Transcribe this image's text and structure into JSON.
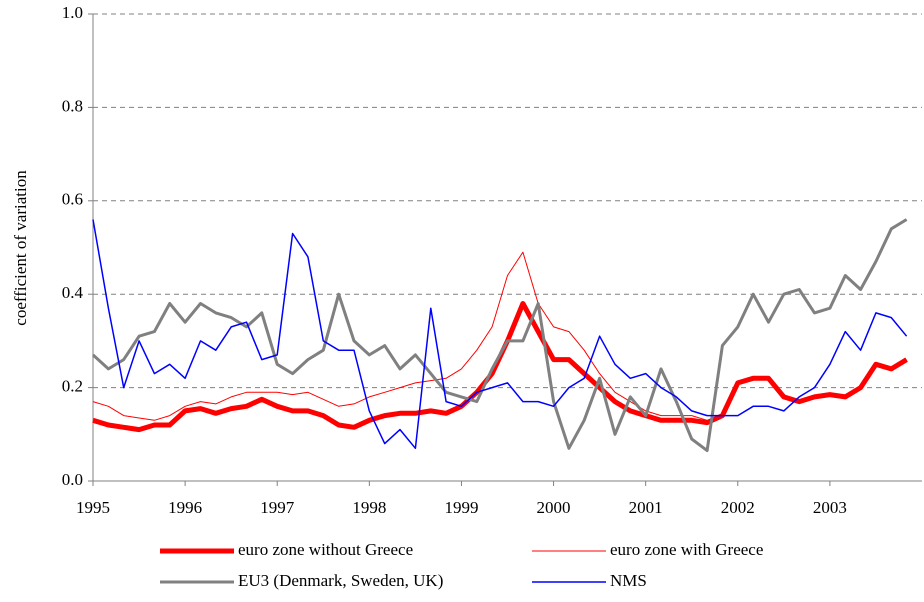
{
  "chart_data": {
    "type": "line",
    "y_label": "coefficient of variation",
    "x": [
      1995,
      1995.167,
      1995.333,
      1995.5,
      1995.667,
      1995.833,
      1996,
      1996.167,
      1996.333,
      1996.5,
      1996.667,
      1996.833,
      1997,
      1997.167,
      1997.333,
      1997.5,
      1997.667,
      1997.833,
      1998,
      1998.167,
      1998.333,
      1998.5,
      1998.667,
      1998.833,
      1999,
      1999.167,
      1999.333,
      1999.5,
      1999.667,
      1999.833,
      2000,
      2000.167,
      2000.333,
      2000.5,
      2000.667,
      2000.833,
      2001,
      2001.167,
      2001.333,
      2001.5,
      2001.667,
      2001.833,
      2002,
      2002.167,
      2002.333,
      2002.5,
      2002.667,
      2002.833,
      2003,
      2003.167,
      2003.333,
      2003.5,
      2003.667,
      2003.833
    ],
    "series": [
      {
        "name": "euro zone without Greece",
        "color": "#ff0000",
        "values": [
          0.13,
          0.12,
          0.115,
          0.11,
          0.12,
          0.12,
          0.15,
          0.155,
          0.145,
          0.155,
          0.16,
          0.175,
          0.16,
          0.15,
          0.15,
          0.14,
          0.12,
          0.115,
          0.13,
          0.14,
          0.145,
          0.145,
          0.15,
          0.145,
          0.16,
          0.19,
          0.23,
          0.3,
          0.38,
          0.32,
          0.26,
          0.26,
          0.23,
          0.2,
          0.17,
          0.15,
          0.14,
          0.13,
          0.13,
          0.13,
          0.125,
          0.14,
          0.21,
          0.22,
          0.22,
          0.18,
          0.17,
          0.18,
          0.185,
          0.18,
          0.2,
          0.25,
          0.24,
          0.26
        ]
      },
      {
        "name": "euro zone with Greece",
        "color": "#ff0000",
        "values": [
          0.17,
          0.16,
          0.14,
          0.135,
          0.13,
          0.14,
          0.16,
          0.17,
          0.165,
          0.18,
          0.19,
          0.19,
          0.19,
          0.185,
          0.19,
          0.175,
          0.16,
          0.165,
          0.18,
          0.19,
          0.2,
          0.21,
          0.215,
          0.22,
          0.24,
          0.28,
          0.33,
          0.44,
          0.49,
          0.38,
          0.33,
          0.32,
          0.28,
          0.23,
          0.19,
          0.17,
          0.15,
          0.14,
          0.14,
          0.14,
          0.13,
          0.14,
          0.21,
          0.22,
          0.22,
          0.18,
          0.17,
          0.18,
          0.185,
          0.18,
          0.2,
          0.25,
          0.24,
          0.26
        ]
      },
      {
        "name": "EU3 (Denmark, Sweden, UK)",
        "color": "#808080",
        "values": [
          0.27,
          0.24,
          0.26,
          0.31,
          0.32,
          0.38,
          0.34,
          0.38,
          0.36,
          0.35,
          0.33,
          0.36,
          0.25,
          0.23,
          0.26,
          0.28,
          0.4,
          0.3,
          0.27,
          0.29,
          0.24,
          0.27,
          0.23,
          0.19,
          0.18,
          0.17,
          0.24,
          0.3,
          0.3,
          0.38,
          0.17,
          0.07,
          0.13,
          0.22,
          0.1,
          0.18,
          0.14,
          0.24,
          0.17,
          0.09,
          0.065,
          0.29,
          0.33,
          0.4,
          0.34,
          0.4,
          0.41,
          0.36,
          0.37,
          0.44,
          0.41,
          0.47,
          0.54,
          0.56
        ]
      },
      {
        "name": "NMS",
        "color": "#0000ff",
        "values": [
          0.56,
          0.37,
          0.2,
          0.3,
          0.23,
          0.25,
          0.22,
          0.3,
          0.28,
          0.33,
          0.34,
          0.26,
          0.27,
          0.53,
          0.48,
          0.3,
          0.28,
          0.28,
          0.15,
          0.08,
          0.11,
          0.07,
          0.37,
          0.17,
          0.16,
          0.19,
          0.2,
          0.21,
          0.17,
          0.17,
          0.16,
          0.2,
          0.22,
          0.31,
          0.25,
          0.22,
          0.23,
          0.2,
          0.18,
          0.15,
          0.14,
          0.14,
          0.14,
          0.16,
          0.16,
          0.15,
          0.18,
          0.2,
          0.25,
          0.32,
          0.28,
          0.36,
          0.35,
          0.31
        ]
      }
    ],
    "xlim": [
      1995,
      2004
    ],
    "xticks": [
      1995,
      1996,
      1997,
      1998,
      1999,
      2000,
      2001,
      2002,
      2003
    ],
    "ylim": [
      0,
      1
    ],
    "yticks": [
      {
        "value": 0,
        "label": "0.0"
      },
      {
        "value": 0.2,
        "label": "0.2"
      },
      {
        "value": 0.4,
        "label": "0.4"
      },
      {
        "value": 0.6,
        "label": "0.6"
      },
      {
        "value": 0.8,
        "label": "0.8"
      },
      {
        "value": 1,
        "label": "1.0"
      }
    ],
    "grid": true
  }
}
